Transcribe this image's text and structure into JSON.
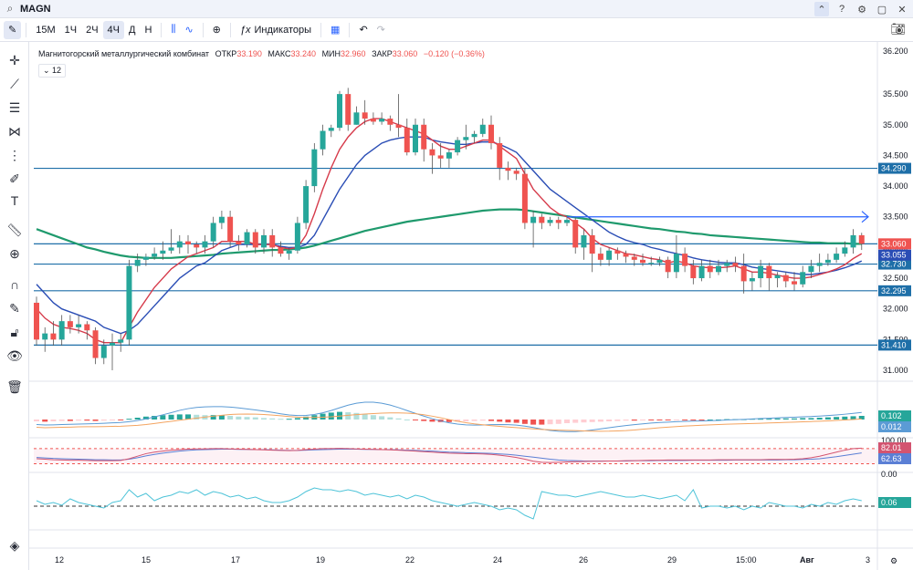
{
  "topbar": {
    "symbol": "MAGN"
  },
  "toolbar": {
    "intervals": [
      "15М",
      "1Ч",
      "2Ч",
      "4Ч",
      "Д",
      "Н"
    ],
    "active_interval": "4Ч",
    "indicators_label": "Индикаторы"
  },
  "legend": {
    "name": "Магнитогорский металлургический комбинат",
    "open_label": "ОТКР",
    "open": "33.190",
    "high_label": "МАКС",
    "high": "33.240",
    "low_label": "МИН",
    "low": "32.960",
    "close_label": "ЗАКР",
    "close": "33.060",
    "change": "−0.120 (−0.36%)",
    "ma_toggle": "12"
  },
  "colors": {
    "up": "#26a69a",
    "down": "#ef5350",
    "accent": "#2962ff",
    "hline": "#1e6fa8",
    "ma_red": "#d63a4a",
    "ma_blue": "#2a4db5",
    "ma_green": "#1f9a6d"
  },
  "chart_data": {
    "type": "candlestick",
    "y_axis_labels": [
      "36.200",
      "35.500",
      "35.000",
      "34.500",
      "34.000",
      "33.500",
      "33.000",
      "32.500",
      "32.000",
      "31.500",
      "31.000"
    ],
    "y_axis_values": [
      36.2,
      35.5,
      35.0,
      34.5,
      34.0,
      33.5,
      33.0,
      32.5,
      32.0,
      31.5,
      31.0
    ],
    "x_axis_labels": [
      "12",
      "15",
      "17",
      "19",
      "22",
      "24",
      "26",
      "29",
      "15:00",
      "Авг",
      "3"
    ],
    "horizontal_levels": [
      {
        "value": 34.29,
        "label": "34.290"
      },
      {
        "value": 33.06,
        "label": "33.060"
      },
      {
        "value": 32.73,
        "label": "32.730"
      },
      {
        "value": 32.295,
        "label": "32.295"
      },
      {
        "value": 31.41,
        "label": "31.410"
      }
    ],
    "price_badges": [
      {
        "value": 33.055,
        "label": "33.055"
      }
    ],
    "candles": [
      [
        32.1,
        31.5,
        32.2,
        31.4
      ],
      [
        31.5,
        31.6,
        31.7,
        31.3
      ],
      [
        31.6,
        31.5,
        31.8,
        31.4
      ],
      [
        31.5,
        31.8,
        31.9,
        31.4
      ],
      [
        31.8,
        31.7,
        31.9,
        31.6
      ],
      [
        31.7,
        31.75,
        31.9,
        31.6
      ],
      [
        31.75,
        31.65,
        31.8,
        31.5
      ],
      [
        31.65,
        31.2,
        31.7,
        31.1
      ],
      [
        31.2,
        31.4,
        31.5,
        31.1
      ],
      [
        31.4,
        31.45,
        31.6,
        31.0
      ],
      [
        31.45,
        31.5,
        31.6,
        31.3
      ],
      [
        31.5,
        32.7,
        32.8,
        31.4
      ],
      [
        32.7,
        32.8,
        32.9,
        32.6
      ],
      [
        32.8,
        32.85,
        32.9,
        32.7
      ],
      [
        32.85,
        32.9,
        33.0,
        32.8
      ],
      [
        32.9,
        32.95,
        33.1,
        32.8
      ],
      [
        32.95,
        33.0,
        33.3,
        32.9
      ],
      [
        33.0,
        33.1,
        33.2,
        32.9
      ],
      [
        33.1,
        33.05,
        33.2,
        32.9
      ],
      [
        33.05,
        33.0,
        33.1,
        32.9
      ],
      [
        33.0,
        33.1,
        33.2,
        32.9
      ],
      [
        33.1,
        33.4,
        33.5,
        33.0
      ],
      [
        33.4,
        33.5,
        33.6,
        33.3
      ],
      [
        33.5,
        33.1,
        33.6,
        33.0
      ],
      [
        33.1,
        33.05,
        33.2,
        32.95
      ],
      [
        33.05,
        33.25,
        33.3,
        33.0
      ],
      [
        33.25,
        33.0,
        33.3,
        32.9
      ],
      [
        33.0,
        33.2,
        33.3,
        32.9
      ],
      [
        33.2,
        33.0,
        33.3,
        32.85
      ],
      [
        33.0,
        32.9,
        33.1,
        32.85
      ],
      [
        32.9,
        32.95,
        33.0,
        32.8
      ],
      [
        32.95,
        33.4,
        33.5,
        32.9
      ],
      [
        33.4,
        34.0,
        34.1,
        33.3
      ],
      [
        34.0,
        34.6,
        34.7,
        33.9
      ],
      [
        34.6,
        34.9,
        35.0,
        34.5
      ],
      [
        34.9,
        34.95,
        35.0,
        34.8
      ],
      [
        34.95,
        35.5,
        35.55,
        34.9
      ],
      [
        35.5,
        35.0,
        35.6,
        34.9
      ],
      [
        35.0,
        35.2,
        35.3,
        35.0
      ],
      [
        35.2,
        35.1,
        35.4,
        35.0
      ],
      [
        35.1,
        35.05,
        35.2,
        35.0
      ],
      [
        35.05,
        35.1,
        35.2,
        35.0
      ],
      [
        35.1,
        35.0,
        35.15,
        34.9
      ],
      [
        35.0,
        34.95,
        35.5,
        34.8
      ],
      [
        34.95,
        34.55,
        35.1,
        34.5
      ],
      [
        34.55,
        35.0,
        35.1,
        34.5
      ],
      [
        35.0,
        34.6,
        35.1,
        34.4
      ],
      [
        34.6,
        34.5,
        34.7,
        34.2
      ],
      [
        34.5,
        34.45,
        34.7,
        34.3
      ],
      [
        34.45,
        34.55,
        34.6,
        34.3
      ],
      [
        34.55,
        34.75,
        34.8,
        34.5
      ],
      [
        34.75,
        34.8,
        35.0,
        34.6
      ],
      [
        34.8,
        34.85,
        34.9,
        34.7
      ],
      [
        34.85,
        35.0,
        35.1,
        34.8
      ],
      [
        35.0,
        34.7,
        35.15,
        34.6
      ],
      [
        34.7,
        34.3,
        34.8,
        34.1
      ],
      [
        34.3,
        34.25,
        34.4,
        34.1
      ],
      [
        34.25,
        34.2,
        34.3,
        34.1
      ],
      [
        34.2,
        33.4,
        34.3,
        33.3
      ],
      [
        33.4,
        33.5,
        33.6,
        33.0
      ],
      [
        33.5,
        33.4,
        33.55,
        33.3
      ],
      [
        33.4,
        33.45,
        33.5,
        33.35
      ],
      [
        33.45,
        33.4,
        33.5,
        33.3
      ],
      [
        33.4,
        33.45,
        33.5,
        33.35
      ],
      [
        33.45,
        33.0,
        33.5,
        32.9
      ],
      [
        33.0,
        33.2,
        33.3,
        32.8
      ],
      [
        33.2,
        32.9,
        33.3,
        32.6
      ],
      [
        32.9,
        32.8,
        33.0,
        32.7
      ],
      [
        32.8,
        32.95,
        33.0,
        32.7
      ],
      [
        32.95,
        32.9,
        33.0,
        32.8
      ],
      [
        32.9,
        32.85,
        32.95,
        32.75
      ],
      [
        32.85,
        32.8,
        32.9,
        32.7
      ],
      [
        32.8,
        32.75,
        32.9,
        32.7
      ],
      [
        32.75,
        32.75,
        32.85,
        32.7
      ],
      [
        32.75,
        32.8,
        32.85,
        32.7
      ],
      [
        32.8,
        32.6,
        32.85,
        32.5
      ],
      [
        32.6,
        32.9,
        33.2,
        32.5
      ],
      [
        32.9,
        32.7,
        33.0,
        32.6
      ],
      [
        32.7,
        32.5,
        32.8,
        32.4
      ],
      [
        32.5,
        32.7,
        32.8,
        32.45
      ],
      [
        32.7,
        32.6,
        32.8,
        32.5
      ],
      [
        32.6,
        32.7,
        32.8,
        32.55
      ],
      [
        32.7,
        32.75,
        32.8,
        32.6
      ],
      [
        32.75,
        32.7,
        32.85,
        32.6
      ],
      [
        32.7,
        32.45,
        32.9,
        32.25
      ],
      [
        32.45,
        32.5,
        32.6,
        32.3
      ],
      [
        32.5,
        32.7,
        32.8,
        32.35
      ],
      [
        32.7,
        32.5,
        32.75,
        32.3
      ],
      [
        32.5,
        32.55,
        32.6,
        32.35
      ],
      [
        32.55,
        32.45,
        32.6,
        32.35
      ],
      [
        32.45,
        32.4,
        32.6,
        32.3
      ],
      [
        32.4,
        32.6,
        32.7,
        32.35
      ],
      [
        32.6,
        32.7,
        32.8,
        32.5
      ],
      [
        32.7,
        32.75,
        32.9,
        32.6
      ],
      [
        32.75,
        32.8,
        32.9,
        32.7
      ],
      [
        32.8,
        32.9,
        33.0,
        32.75
      ],
      [
        32.9,
        33.0,
        33.1,
        32.85
      ],
      [
        33.0,
        33.2,
        33.3,
        32.9
      ],
      [
        33.2,
        33.06,
        33.24,
        32.96
      ]
    ],
    "ma_red": [
      32.0,
      31.85,
      31.75,
      31.7,
      31.68,
      31.65,
      31.6,
      31.5,
      31.45,
      31.45,
      31.45,
      31.7,
      31.95,
      32.15,
      32.35,
      32.5,
      32.65,
      32.75,
      32.85,
      32.9,
      32.95,
      33.0,
      33.1,
      33.1,
      33.1,
      33.1,
      33.05,
      33.05,
      33.05,
      33.0,
      32.98,
      33.0,
      33.2,
      33.55,
      33.95,
      34.3,
      34.6,
      34.8,
      34.95,
      35.05,
      35.1,
      35.1,
      35.05,
      35.0,
      34.95,
      34.9,
      34.85,
      34.75,
      34.65,
      34.6,
      34.6,
      34.65,
      34.7,
      34.75,
      34.75,
      34.65,
      34.55,
      34.45,
      34.2,
      33.95,
      33.8,
      33.65,
      33.55,
      33.5,
      33.4,
      33.3,
      33.15,
      33.05,
      33.0,
      32.95,
      32.9,
      32.88,
      32.85,
      32.82,
      32.8,
      32.75,
      32.78,
      32.75,
      32.7,
      32.68,
      32.67,
      32.67,
      32.68,
      32.7,
      32.65,
      32.6,
      32.6,
      32.58,
      32.55,
      32.52,
      32.5,
      32.5,
      32.52,
      32.56,
      32.6,
      32.65,
      32.72,
      32.82,
      32.9
    ],
    "ma_blue": [
      32.4,
      32.25,
      32.1,
      32.0,
      31.95,
      31.9,
      31.85,
      31.8,
      31.7,
      31.65,
      31.6,
      31.65,
      31.75,
      31.9,
      32.05,
      32.2,
      32.35,
      32.5,
      32.6,
      32.7,
      32.75,
      32.85,
      32.95,
      33.0,
      33.05,
      33.05,
      33.05,
      33.05,
      33.05,
      33.02,
      33.0,
      33.0,
      33.05,
      33.2,
      33.45,
      33.7,
      33.95,
      34.15,
      34.35,
      34.5,
      34.6,
      34.7,
      34.75,
      34.78,
      34.8,
      34.8,
      34.8,
      34.75,
      34.72,
      34.7,
      34.68,
      34.68,
      34.7,
      34.72,
      34.72,
      34.68,
      34.62,
      34.55,
      34.4,
      34.25,
      34.1,
      33.95,
      33.85,
      33.75,
      33.65,
      33.55,
      33.45,
      33.35,
      33.25,
      33.18,
      33.12,
      33.08,
      33.05,
      33.0,
      32.97,
      32.93,
      32.9,
      32.87,
      32.83,
      32.8,
      32.78,
      32.76,
      32.75,
      32.75,
      32.72,
      32.68,
      32.66,
      32.64,
      32.62,
      32.6,
      32.58,
      32.56,
      32.56,
      32.58,
      32.6,
      32.63,
      32.67,
      32.72,
      32.78
    ],
    "ma_green": [
      33.3,
      33.25,
      33.2,
      33.15,
      33.1,
      33.05,
      33.0,
      32.97,
      32.93,
      32.9,
      32.87,
      32.85,
      32.84,
      32.83,
      32.83,
      32.83,
      32.83,
      32.84,
      32.85,
      32.86,
      32.87,
      32.88,
      32.9,
      32.91,
      32.92,
      32.93,
      32.94,
      32.95,
      32.96,
      32.96,
      32.97,
      32.98,
      33.0,
      33.03,
      33.07,
      33.11,
      33.15,
      33.19,
      33.23,
      33.27,
      33.3,
      33.33,
      33.36,
      33.39,
      33.42,
      33.44,
      33.46,
      33.48,
      33.5,
      33.52,
      33.54,
      33.56,
      33.58,
      33.6,
      33.61,
      33.62,
      33.62,
      33.62,
      33.61,
      33.59,
      33.57,
      33.55,
      33.53,
      33.51,
      33.49,
      33.47,
      33.45,
      33.43,
      33.41,
      33.39,
      33.37,
      33.35,
      33.33,
      33.31,
      33.3,
      33.28,
      33.26,
      33.25,
      33.23,
      33.22,
      33.2,
      33.19,
      33.18,
      33.17,
      33.16,
      33.15,
      33.14,
      33.13,
      33.12,
      33.11,
      33.1,
      33.09,
      33.08,
      33.08,
      33.07,
      33.07,
      33.07,
      33.06,
      33.06
    ],
    "arrow": {
      "from_index": 63,
      "to_index": 99,
      "value": 33.5
    },
    "macd": {
      "labels": [
        "0.102",
        "0.012"
      ],
      "hist": [
        -0.05,
        -0.06,
        -0.05,
        -0.04,
        -0.04,
        -0.03,
        -0.03,
        -0.04,
        -0.03,
        -0.02,
        -0.02,
        0.02,
        0.05,
        0.08,
        0.1,
        0.12,
        0.13,
        0.14,
        0.14,
        0.13,
        0.12,
        0.12,
        0.12,
        0.1,
        0.08,
        0.07,
        0.06,
        0.04,
        0.03,
        0.02,
        0.02,
        0.04,
        0.08,
        0.12,
        0.16,
        0.19,
        0.21,
        0.2,
        0.18,
        0.15,
        0.12,
        0.09,
        0.06,
        0.03,
        0.0,
        -0.02,
        -0.04,
        -0.06,
        -0.07,
        -0.07,
        -0.06,
        -0.05,
        -0.04,
        -0.03,
        -0.04,
        -0.06,
        -0.08,
        -0.09,
        -0.12,
        -0.14,
        -0.14,
        -0.13,
        -0.12,
        -0.1,
        -0.09,
        -0.08,
        -0.07,
        -0.06,
        -0.05,
        -0.04,
        -0.03,
        -0.03,
        -0.02,
        -0.02,
        -0.02,
        -0.02,
        -0.01,
        -0.01,
        -0.01,
        -0.01,
        0.0,
        0.0,
        0.01,
        0.01,
        0.01,
        0.02,
        0.02,
        0.02,
        0.03,
        0.03,
        0.03,
        0.04,
        0.04,
        0.05,
        0.06,
        0.07,
        0.08,
        0.09,
        0.1
      ]
    },
    "rsi": {
      "labels": [
        "82.01",
        "62.63",
        "0.00"
      ],
      "axis_labels": [
        "100.00",
        "0.00"
      ],
      "line1": [
        40,
        38,
        36,
        35,
        34,
        34,
        33,
        32,
        32,
        32,
        33,
        40,
        50,
        60,
        66,
        70,
        74,
        76,
        78,
        79,
        79,
        80,
        80,
        79,
        78,
        77,
        76,
        75,
        74,
        73,
        72,
        73,
        76,
        78,
        80,
        80,
        81,
        80,
        79,
        78,
        77,
        76,
        75,
        74,
        72,
        70,
        68,
        66,
        64,
        62,
        61,
        60,
        60,
        59,
        57,
        54,
        50,
        45,
        38,
        30,
        26,
        25,
        26,
        27,
        28,
        29,
        30,
        30,
        31,
        31,
        32,
        32,
        33,
        34,
        34,
        35,
        35,
        35,
        35,
        35,
        35,
        36,
        36,
        36,
        36,
        36,
        36,
        37,
        37,
        37,
        38,
        40,
        44,
        50,
        58,
        66,
        74,
        80,
        82
      ],
      "line2": [
        45,
        43,
        41,
        40,
        39,
        38,
        37,
        36,
        36,
        35,
        35,
        38,
        44,
        51,
        57,
        62,
        66,
        70,
        73,
        75,
        76,
        77,
        78,
        78,
        77,
        77,
        76,
        76,
        75,
        74,
        73,
        73,
        74,
        75,
        76,
        77,
        78,
        78,
        78,
        77,
        77,
        76,
        76,
        75,
        74,
        73,
        71,
        70,
        68,
        66,
        65,
        64,
        63,
        62,
        61,
        59,
        57,
        54,
        50,
        46,
        42,
        38,
        35,
        33,
        32,
        31,
        31,
        31,
        31,
        31,
        31,
        32,
        32,
        32,
        33,
        33,
        33,
        33,
        34,
        34,
        34,
        34,
        34,
        35,
        35,
        35,
        35,
        35,
        35,
        36,
        36,
        37,
        38,
        40,
        44,
        48,
        53,
        58,
        63
      ]
    },
    "osc": {
      "label": "0.06",
      "line": [
        0.3,
        0.1,
        0.2,
        0.05,
        0.4,
        0.2,
        0.1,
        0.0,
        -0.1,
        0.2,
        0.3,
        0.9,
        0.5,
        0.7,
        0.3,
        0.5,
        0.6,
        0.8,
        0.7,
        0.9,
        0.6,
        0.8,
        0.7,
        0.5,
        0.6,
        0.4,
        0.5,
        0.3,
        0.2,
        0.2,
        0.3,
        0.5,
        0.8,
        1.0,
        0.9,
        0.9,
        0.8,
        0.9,
        0.8,
        0.6,
        0.7,
        0.6,
        0.5,
        0.6,
        0.4,
        0.6,
        0.5,
        0.3,
        0.2,
        0.1,
        0.0,
        0.1,
        0.2,
        0.1,
        0.0,
        -0.2,
        -0.1,
        -0.2,
        -0.5,
        -0.7,
        0.8,
        0.7,
        0.6,
        0.6,
        0.5,
        0.6,
        0.7,
        0.8,
        0.7,
        0.6,
        0.5,
        0.5,
        0.6,
        0.5,
        0.4,
        0.5,
        0.6,
        0.3,
        0.9,
        -0.1,
        0.0,
        0.0,
        -0.1,
        0.0,
        -0.2,
        0.0,
        -0.1,
        0.2,
        0.1,
        0.0,
        0.0,
        -0.1,
        0.1,
        0.0,
        0.2,
        0.1,
        0.3,
        0.4,
        0.3
      ]
    }
  }
}
